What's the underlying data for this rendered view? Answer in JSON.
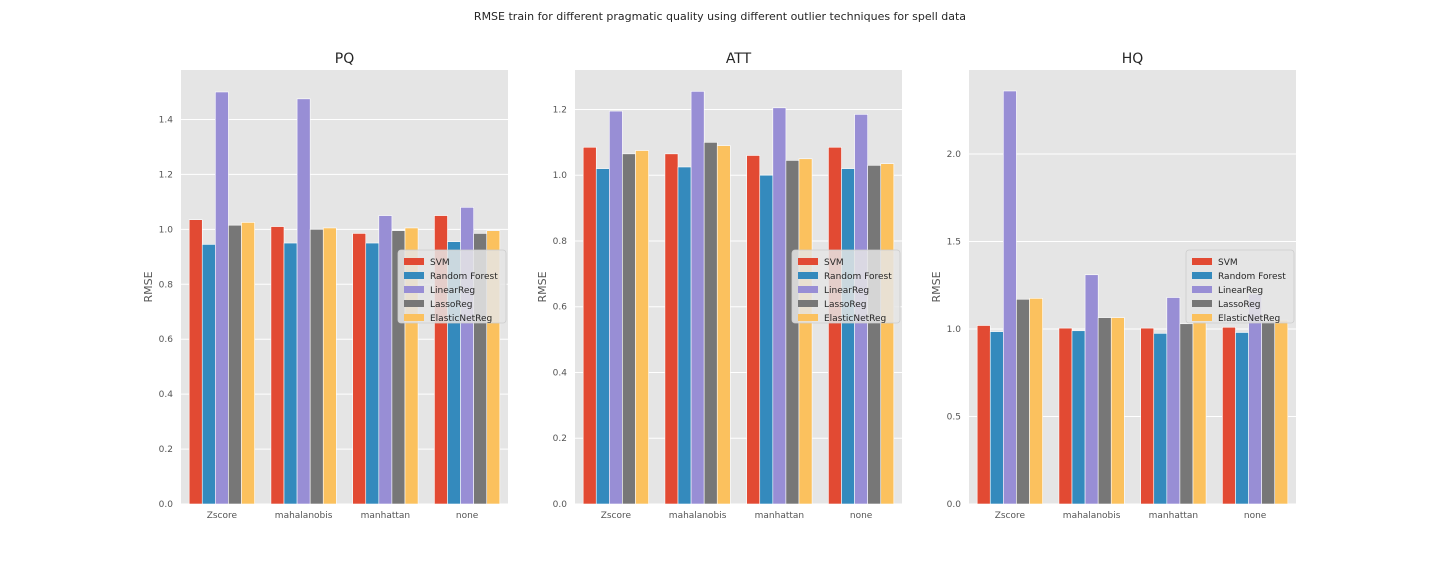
{
  "suptitle": "RMSE train for different pragmatic quality using different outlier techniques for spell data",
  "legend": {
    "placement": "center-right",
    "entries": [
      "SVM",
      "Random Forest",
      "LinearReg",
      "LassoReg",
      "ElasticNetReg"
    ]
  },
  "colors": {
    "SVM": "#E24A33",
    "Random Forest": "#348ABD",
    "LinearReg": "#988ED5",
    "LassoReg": "#777777",
    "ElasticNetReg": "#FBC15E",
    "background": "#E5E5E5",
    "grid": "#FFFFFF"
  },
  "chart_data": [
    {
      "type": "bar",
      "title": "PQ",
      "xlabel": "",
      "ylabel": "RMSE",
      "ylim": [
        0,
        1.58
      ],
      "yticks": [
        0.0,
        0.2,
        0.4,
        0.6,
        0.8,
        1.0,
        1.2,
        1.4
      ],
      "grid": true,
      "categories": [
        "Zscore",
        "mahalanobis",
        "manhattan",
        "none"
      ],
      "series": [
        {
          "name": "SVM",
          "values": [
            1.035,
            1.01,
            0.985,
            1.05
          ]
        },
        {
          "name": "Random Forest",
          "values": [
            0.945,
            0.95,
            0.95,
            0.955
          ]
        },
        {
          "name": "LinearReg",
          "values": [
            1.5,
            1.475,
            1.05,
            1.08
          ]
        },
        {
          "name": "LassoReg",
          "values": [
            1.015,
            1.0,
            0.995,
            0.985
          ]
        },
        {
          "name": "ElasticNetReg",
          "values": [
            1.025,
            1.005,
            1.005,
            0.995
          ]
        }
      ]
    },
    {
      "type": "bar",
      "title": "ATT",
      "xlabel": "",
      "ylabel": "RMSE",
      "ylim": [
        0,
        1.32
      ],
      "yticks": [
        0.0,
        0.2,
        0.4,
        0.6,
        0.8,
        1.0,
        1.2
      ],
      "grid": true,
      "categories": [
        "Zscore",
        "mahalanobis",
        "manhattan",
        "none"
      ],
      "series": [
        {
          "name": "SVM",
          "values": [
            1.085,
            1.065,
            1.06,
            1.085
          ]
        },
        {
          "name": "Random Forest",
          "values": [
            1.02,
            1.025,
            1.0,
            1.02
          ]
        },
        {
          "name": "LinearReg",
          "values": [
            1.195,
            1.255,
            1.205,
            1.185
          ]
        },
        {
          "name": "LassoReg",
          "values": [
            1.065,
            1.1,
            1.045,
            1.03
          ]
        },
        {
          "name": "ElasticNetReg",
          "values": [
            1.075,
            1.09,
            1.05,
            1.035
          ]
        }
      ]
    },
    {
      "type": "bar",
      "title": "HQ",
      "xlabel": "",
      "ylabel": "RMSE",
      "ylim": [
        0,
        2.48
      ],
      "yticks": [
        0.0,
        0.5,
        1.0,
        1.5,
        2.0
      ],
      "grid": true,
      "categories": [
        "Zscore",
        "mahalanobis",
        "manhattan",
        "none"
      ],
      "series": [
        {
          "name": "SVM",
          "values": [
            1.02,
            1.005,
            1.005,
            1.01
          ]
        },
        {
          "name": "Random Forest",
          "values": [
            0.985,
            0.99,
            0.975,
            0.98
          ]
        },
        {
          "name": "LinearReg",
          "values": [
            2.36,
            1.31,
            1.18,
            1.2
          ]
        },
        {
          "name": "LassoReg",
          "values": [
            1.17,
            1.065,
            1.03,
            1.045
          ]
        },
        {
          "name": "ElasticNetReg",
          "values": [
            1.175,
            1.065,
            1.045,
            1.05
          ]
        }
      ]
    }
  ]
}
